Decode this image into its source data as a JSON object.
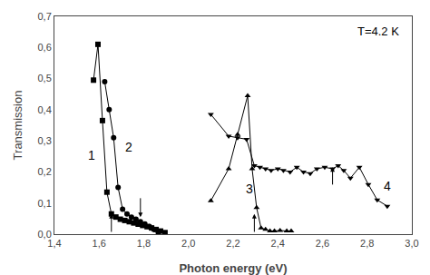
{
  "chart_data": {
    "type": "line",
    "xlabel": "Photon energy (eV)",
    "ylabel": "Transmission",
    "xlim": [
      1.4,
      3.0
    ],
    "ylim": [
      0.0,
      0.7
    ],
    "xticks": [
      {
        "value": 1.4,
        "label": "1,4"
      },
      {
        "value": 1.6,
        "label": "1,6"
      },
      {
        "value": 1.8,
        "label": "1,8"
      },
      {
        "value": 2.0,
        "label": "2,0"
      },
      {
        "value": 2.2,
        "label": "2,2"
      },
      {
        "value": 2.4,
        "label": "2,4"
      },
      {
        "value": 2.6,
        "label": "2,6"
      },
      {
        "value": 2.8,
        "label": "2,8"
      },
      {
        "value": 3.0,
        "label": "3,0"
      }
    ],
    "yticks": [
      {
        "value": 0.0,
        "label": "0,0"
      },
      {
        "value": 0.1,
        "label": "0,1"
      },
      {
        "value": 0.2,
        "label": "0,2"
      },
      {
        "value": 0.3,
        "label": "0,3"
      },
      {
        "value": 0.4,
        "label": "0,4"
      },
      {
        "value": 0.5,
        "label": "0,5"
      },
      {
        "value": 0.6,
        "label": "0,6"
      },
      {
        "value": 0.7,
        "label": "0,7"
      }
    ],
    "grid": false,
    "series": [
      {
        "color": "black",
        "marker": "square",
        "x": [
          1.575,
          1.595,
          1.615,
          1.635,
          1.655,
          1.675,
          1.695,
          1.715,
          1.735,
          1.755,
          1.775,
          1.795,
          1.815,
          1.835,
          1.855,
          1.875,
          1.895
        ],
        "values": [
          0.495,
          0.61,
          0.365,
          0.135,
          0.065,
          0.055,
          0.048,
          0.044,
          0.04,
          0.036,
          0.032,
          0.028,
          0.024,
          0.02,
          0.015,
          0.01,
          0.005
        ]
      },
      {
        "color": "black",
        "marker": "circle",
        "x": [
          1.625,
          1.645,
          1.665,
          1.685,
          1.705,
          1.725,
          1.745,
          1.765,
          1.785,
          1.805,
          1.825,
          1.845,
          1.865
        ],
        "values": [
          0.49,
          0.4,
          0.31,
          0.15,
          0.08,
          0.065,
          0.055,
          0.048,
          0.04,
          0.033,
          0.025,
          0.015,
          0.005
        ]
      },
      {
        "color": "black",
        "marker": "triangle-up",
        "x": [
          2.1,
          2.18,
          2.22,
          2.265,
          2.285,
          2.305,
          2.325,
          2.345,
          2.365,
          2.385,
          2.41,
          2.44,
          2.46
        ],
        "values": [
          0.107,
          0.21,
          0.32,
          0.445,
          0.21,
          0.085,
          0.02,
          0.015,
          0.01,
          0.01,
          0.012,
          0.01,
          0.01
        ]
      },
      {
        "color": "black",
        "marker": "triangle-down",
        "x": [
          2.1,
          2.18,
          2.22,
          2.26,
          2.295,
          2.32,
          2.345,
          2.37,
          2.4,
          2.425,
          2.455,
          2.485,
          2.515,
          2.545,
          2.575,
          2.61,
          2.645,
          2.67,
          2.695,
          2.725,
          2.765,
          2.805,
          2.845,
          2.89
        ],
        "values": [
          0.385,
          0.315,
          0.31,
          0.305,
          0.22,
          0.215,
          0.21,
          0.205,
          0.21,
          0.205,
          0.2,
          0.215,
          0.2,
          0.195,
          0.21,
          0.215,
          0.21,
          0.22,
          0.205,
          0.18,
          0.215,
          0.16,
          0.11,
          0.09
        ]
      }
    ],
    "annotations": [
      {
        "text": "1",
        "x": 1.565,
        "y": 0.255
      },
      {
        "text": "2",
        "x": 1.735,
        "y": 0.28
      },
      {
        "text": "3",
        "x": 2.275,
        "y": 0.145
      },
      {
        "text": "4",
        "x": 2.89,
        "y": 0.155
      }
    ],
    "arrows": [
      {
        "x": 1.655,
        "y_from": 0.003,
        "y_to": 0.065
      },
      {
        "x": 1.785,
        "y_from": 0.12,
        "y_to": 0.055
      },
      {
        "x": 2.295,
        "y_from": 0.003,
        "y_to": 0.065
      },
      {
        "x": 2.645,
        "y_from": 0.155,
        "y_to": 0.215
      }
    ],
    "corner_note": "T=4.2 K"
  }
}
